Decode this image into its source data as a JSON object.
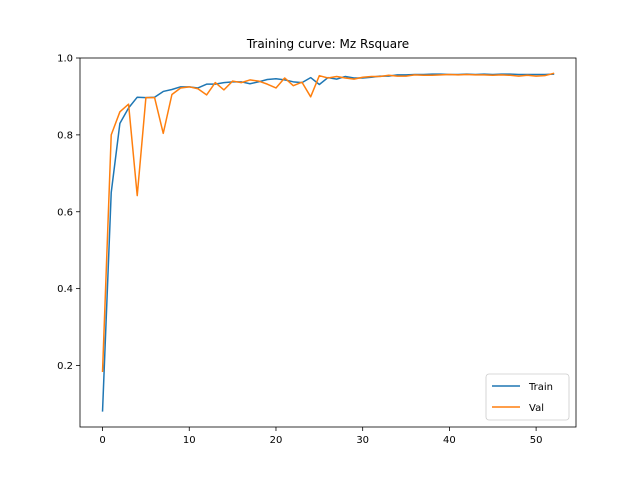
{
  "chart_data": {
    "type": "line",
    "title": "Training curve: Mz Rsquare",
    "xlabel": "",
    "ylabel": "",
    "xlim": [
      -2.6,
      54.6
    ],
    "ylim": [
      0.04,
      1.0
    ],
    "xticks": [
      0,
      10,
      20,
      30,
      40,
      50
    ],
    "yticks": [
      0.2,
      0.4,
      0.6,
      0.8,
      1.0
    ],
    "xtick_labels": [
      "0",
      "10",
      "20",
      "30",
      "40",
      "50"
    ],
    "ytick_labels": [
      "0.2",
      "0.4",
      "0.6",
      "0.8",
      "1.0"
    ],
    "grid": false,
    "legend_position": "lower right",
    "x": [
      0,
      1,
      2,
      3,
      4,
      5,
      6,
      7,
      8,
      9,
      10,
      11,
      12,
      13,
      14,
      15,
      16,
      17,
      18,
      19,
      20,
      21,
      22,
      23,
      24,
      25,
      26,
      27,
      28,
      29,
      30,
      31,
      32,
      33,
      34,
      35,
      36,
      37,
      38,
      39,
      40,
      41,
      42,
      43,
      44,
      45,
      46,
      47,
      48,
      49,
      50,
      51,
      52
    ],
    "series": [
      {
        "name": "Train",
        "color": "#1f77b4",
        "values": [
          0.082,
          0.65,
          0.83,
          0.87,
          0.898,
          0.897,
          0.898,
          0.913,
          0.918,
          0.925,
          0.925,
          0.922,
          0.932,
          0.932,
          0.936,
          0.938,
          0.938,
          0.933,
          0.938,
          0.944,
          0.946,
          0.943,
          0.938,
          0.936,
          0.949,
          0.931,
          0.949,
          0.945,
          0.952,
          0.948,
          0.948,
          0.95,
          0.953,
          0.953,
          0.956,
          0.956,
          0.957,
          0.957,
          0.958,
          0.958,
          0.957,
          0.957,
          0.958,
          0.957,
          0.958,
          0.957,
          0.958,
          0.958,
          0.957,
          0.957,
          0.957,
          0.957,
          0.958
        ]
      },
      {
        "name": "Val",
        "color": "#ff7f0e",
        "values": [
          0.185,
          0.8,
          0.86,
          0.88,
          0.642,
          0.897,
          0.897,
          0.804,
          0.905,
          0.922,
          0.925,
          0.92,
          0.904,
          0.936,
          0.917,
          0.94,
          0.936,
          0.943,
          0.94,
          0.932,
          0.922,
          0.948,
          0.928,
          0.937,
          0.899,
          0.954,
          0.948,
          0.952,
          0.948,
          0.945,
          0.95,
          0.952,
          0.952,
          0.955,
          0.953,
          0.953,
          0.956,
          0.955,
          0.955,
          0.956,
          0.957,
          0.956,
          0.957,
          0.956,
          0.956,
          0.955,
          0.956,
          0.955,
          0.953,
          0.955,
          0.953,
          0.954,
          0.96
        ]
      }
    ]
  }
}
